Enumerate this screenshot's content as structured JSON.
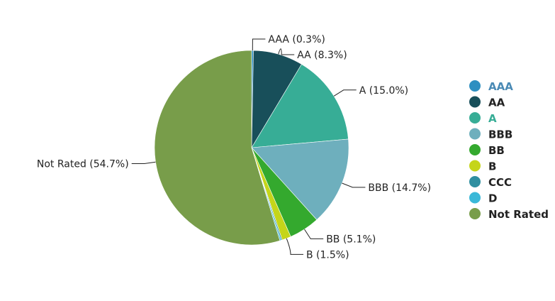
{
  "chart_data": {
    "type": "pie",
    "slices": [
      {
        "name": "AAA",
        "value": 0.3,
        "label": "AAA (0.3%)",
        "color": "#2e8fc1",
        "legend_text_color": "#4a8ab5"
      },
      {
        "name": "AA",
        "value": 8.3,
        "label": "AA (8.3%)",
        "color": "#184f5a",
        "legend_text_color": "#222222"
      },
      {
        "name": "A",
        "value": 15.0,
        "label": "A (15.0%)",
        "color": "#37ad96",
        "legend_text_color": "#37ad96"
      },
      {
        "name": "BBB",
        "value": 14.7,
        "label": "BBB (14.7%)",
        "color": "#6eafbd",
        "legend_text_color": "#222222"
      },
      {
        "name": "BB",
        "value": 5.1,
        "label": "BB (5.1%)",
        "color": "#34a92e",
        "legend_text_color": "#222222"
      },
      {
        "name": "B",
        "value": 1.5,
        "label": "B (1.5%)",
        "color": "#c5d51a",
        "legend_text_color": "#222222"
      },
      {
        "name": "CCC",
        "value": 0.2,
        "label": "",
        "color": "#2f8fa0",
        "legend_text_color": "#222222"
      },
      {
        "name": "D",
        "value": 0.2,
        "label": "",
        "color": "#3ab8d8",
        "legend_text_color": "#222222"
      },
      {
        "name": "Not Rated",
        "value": 54.7,
        "label": "Not Rated (54.7%)",
        "color": "#789d4a",
        "legend_text_color": "#222222"
      }
    ],
    "legend_position": "right"
  }
}
